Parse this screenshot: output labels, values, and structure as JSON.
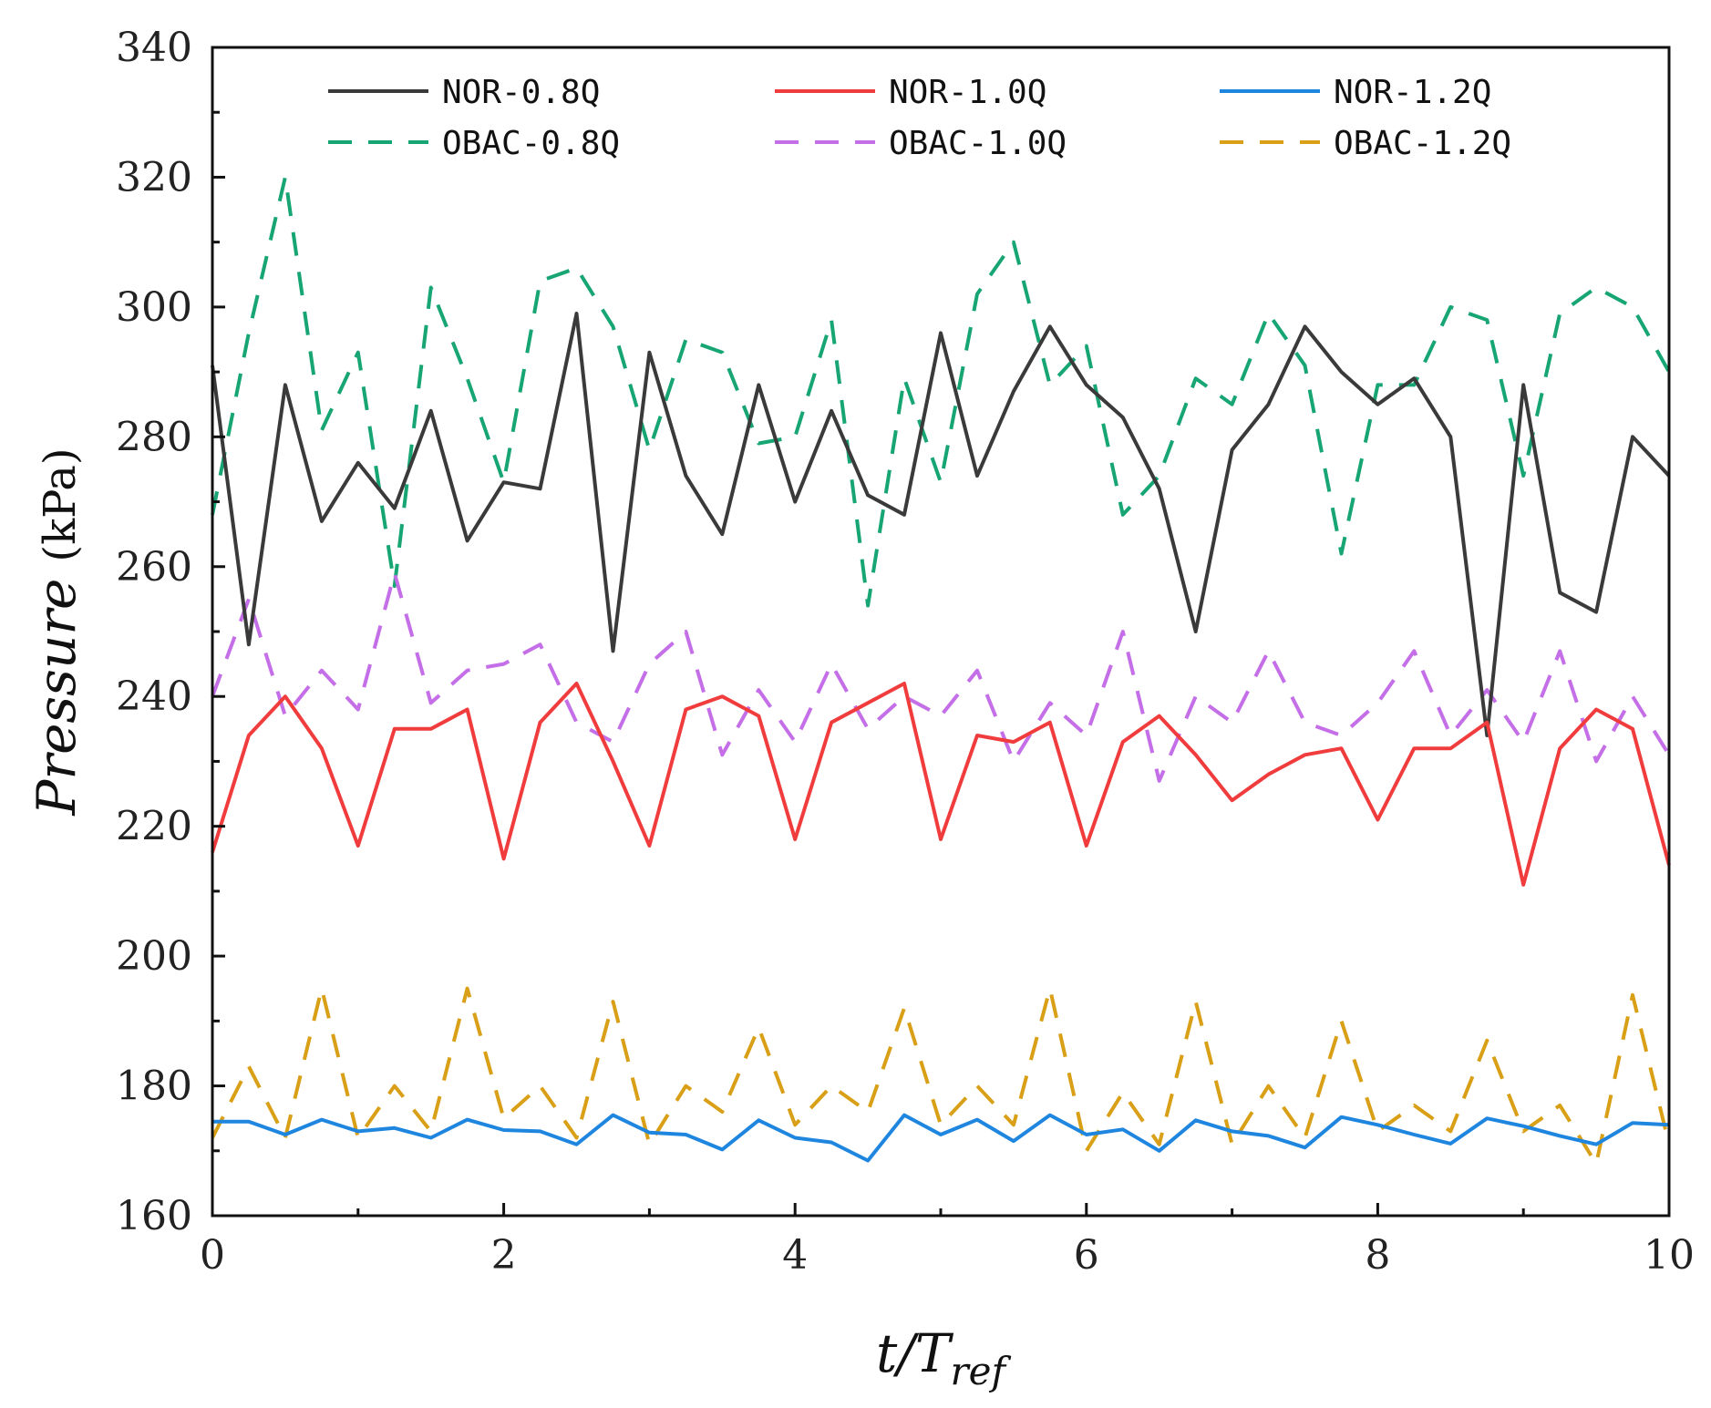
{
  "chart_data": {
    "type": "line",
    "title": "",
    "xlabel_main": "t/T",
    "xlabel_sub": "ref",
    "ylabel_main": "Pressure",
    "ylabel_unit": "(kPa)",
    "xlim": [
      0,
      10
    ],
    "ylim": [
      160,
      340
    ],
    "xticks": [
      0,
      2,
      4,
      6,
      8,
      10
    ],
    "yticks": [
      160,
      180,
      200,
      220,
      240,
      260,
      280,
      300,
      320,
      340
    ],
    "xtick_labels": [
      "0",
      "2",
      "4",
      "6",
      "8",
      "10"
    ],
    "ytick_labels": [
      "160",
      "180",
      "200",
      "220",
      "240",
      "260",
      "280",
      "300",
      "320",
      "340"
    ],
    "legend_position": "top",
    "x": [
      0,
      0.25,
      0.5,
      0.75,
      1.0,
      1.25,
      1.5,
      1.75,
      2.0,
      2.25,
      2.5,
      2.75,
      3.0,
      3.25,
      3.5,
      3.75,
      4.0,
      4.25,
      4.5,
      4.75,
      5.0,
      5.25,
      5.5,
      5.75,
      6.0,
      6.25,
      6.5,
      6.75,
      7.0,
      7.25,
      7.5,
      7.75,
      8.0,
      8.25,
      8.5,
      8.75,
      9.0,
      9.25,
      9.5,
      9.75,
      10.0
    ],
    "series": [
      {
        "name": "NOR-0.8Q",
        "color": "#3a3a3a",
        "dash": "solid",
        "values": [
          291,
          248,
          288,
          267,
          276,
          269,
          284,
          264,
          273,
          272,
          299,
          247,
          293,
          274,
          265,
          288,
          270,
          284,
          271,
          268,
          296,
          274,
          287,
          297,
          288,
          283,
          272,
          250,
          278,
          285,
          297,
          290,
          285,
          289,
          280,
          234,
          288,
          256,
          253,
          280,
          274
        ]
      },
      {
        "name": "NOR-1.0Q",
        "color": "#f03c3c",
        "dash": "solid",
        "values": [
          216,
          234,
          240,
          232,
          217,
          235,
          235,
          238,
          215,
          236,
          242,
          230,
          217,
          238,
          240,
          237,
          218,
          236,
          239,
          242,
          218,
          234,
          233,
          236,
          217,
          233,
          237,
          231,
          224,
          228,
          231,
          232,
          221,
          232,
          232,
          236,
          211,
          232,
          238,
          235,
          214
        ]
      },
      {
        "name": "NOR-1.2Q",
        "color": "#1f86e0",
        "dash": "solid",
        "values": [
          174.5,
          174.5,
          172.5,
          174.8,
          173,
          173.5,
          172,
          174.8,
          173.2,
          173,
          171,
          175.5,
          172.8,
          172.5,
          170.2,
          174.7,
          172,
          171.3,
          168.5,
          175.5,
          172.5,
          174.8,
          171.5,
          175.5,
          172.5,
          173.3,
          170,
          174.7,
          173,
          172.3,
          170.5,
          175.2,
          174,
          172.5,
          171.1,
          175,
          173.8,
          172.3,
          171,
          174.3,
          174
        ]
      },
      {
        "name": "OBAC-0.8Q",
        "color": "#17a673",
        "dash": "dashed",
        "values": [
          268,
          296,
          320,
          281,
          293,
          257,
          303,
          289,
          273,
          304,
          306,
          297,
          278,
          295,
          293,
          279,
          280,
          298,
          254,
          289,
          273,
          302,
          310,
          288,
          294,
          268,
          274,
          289,
          285,
          299,
          291,
          262,
          288,
          288,
          300,
          298,
          274,
          299,
          303,
          300,
          290
        ]
      },
      {
        "name": "OBAC-1.0Q",
        "color": "#c46ee8",
        "dash": "dashed",
        "values": [
          240,
          255,
          237,
          244,
          238,
          259,
          239,
          244,
          245,
          248,
          236,
          233,
          245,
          250,
          231,
          241,
          233,
          245,
          235,
          240,
          237,
          244,
          230,
          239,
          234,
          250,
          227,
          240,
          236,
          247,
          236,
          234,
          239,
          247,
          234,
          241,
          233,
          247,
          230,
          240,
          231
        ]
      },
      {
        "name": "OBAC-1.2Q",
        "color": "#d9a017",
        "dash": "dashed",
        "values": [
          172,
          183,
          172,
          195,
          172,
          180,
          173,
          195,
          175,
          180,
          172,
          193,
          171,
          180,
          176,
          189,
          174,
          180,
          176,
          192,
          174,
          180,
          174,
          195,
          170,
          179,
          171,
          193,
          171,
          180,
          172,
          190,
          173,
          177,
          173,
          187,
          173,
          177,
          168,
          194,
          171
        ]
      }
    ]
  }
}
